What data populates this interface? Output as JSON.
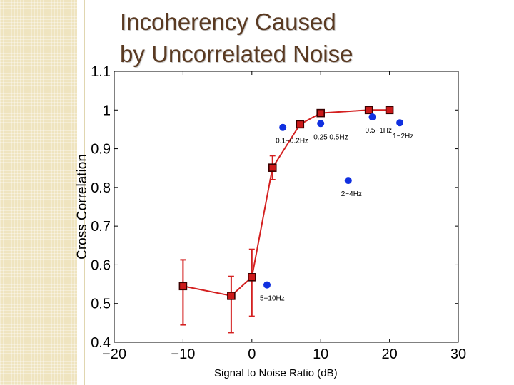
{
  "slide": {
    "title_line1": "Incoherency Caused",
    "title_line2": "by Uncorrelated Noise"
  },
  "colors": {
    "panel": "#efe4bf",
    "title": "#5a3a22",
    "line_series": "#d42020",
    "marker_fill": "#cc1a1a",
    "marker_edge": "#3a0000",
    "scatter": "#1030e0"
  },
  "chart_data": {
    "type": "line",
    "xlabel": "Signal to Noise Ratio (dB)",
    "ylabel": "Cross Correlation",
    "xlim": [
      -20,
      30
    ],
    "ylim": [
      0.4,
      1.1
    ],
    "x_ticks": [
      -20,
      -10,
      0,
      10,
      20,
      30
    ],
    "x_tick_labels": [
      "−20",
      "−10",
      "0",
      "10",
      "20",
      "30"
    ],
    "y_ticks": [
      0.4,
      0.5,
      0.6,
      0.7,
      0.8,
      0.9,
      1.0,
      1.1
    ],
    "y_tick_labels": [
      "0.4",
      "0.5",
      "0.6",
      "0.7",
      "0.8",
      "0.9",
      "1",
      "1.1"
    ],
    "grid": false,
    "series": [
      {
        "kind": "line-with-errorbars",
        "x": [
          -10,
          -3,
          0,
          3,
          7,
          10,
          17,
          20
        ],
        "y": [
          0.545,
          0.52,
          0.568,
          0.851,
          0.963,
          0.992,
          1.0,
          1.0
        ],
        "err_low": [
          0.445,
          0.425,
          0.467,
          0.82,
          0.963,
          0.992,
          1.0,
          1.0
        ],
        "err_high": [
          0.613,
          0.57,
          0.64,
          0.882,
          0.963,
          0.992,
          1.0,
          1.0
        ]
      },
      {
        "kind": "scatter",
        "points": [
          {
            "x": 2.2,
            "y": 0.548,
            "label": "5−10Hz"
          },
          {
            "x": 4.5,
            "y": 0.955,
            "label": "0.1−0.2Hz"
          },
          {
            "x": 10.0,
            "y": 0.965,
            "label": "0.25  0.5Hz"
          },
          {
            "x": 14.0,
            "y": 0.818,
            "label": "2−4Hz"
          },
          {
            "x": 17.5,
            "y": 0.982,
            "label": "0.5−1Hz"
          },
          {
            "x": 21.5,
            "y": 0.967,
            "label": "1−2Hz"
          }
        ]
      }
    ]
  }
}
